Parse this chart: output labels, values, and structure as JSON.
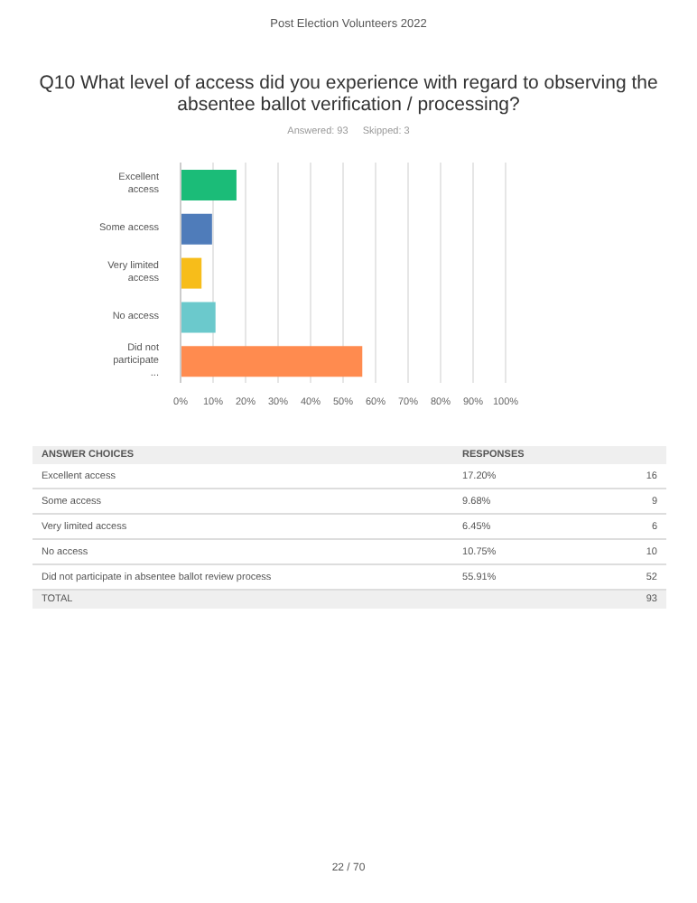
{
  "chart_data": {
    "type": "bar",
    "orientation": "horizontal",
    "subtitle": "Post Election Volunteers 2022",
    "title": "Q10 What level of access did you experience with regard to observing the absentee ballot verification / processing?",
    "categories": [
      "Excellent access",
      "Some access",
      "Very limited access",
      "No access",
      "Did not participate ..."
    ],
    "values": [
      17.2,
      9.68,
      6.45,
      10.75,
      55.91
    ],
    "colors": [
      "#1bbc78",
      "#4f7cba",
      "#f7bd1a",
      "#6bc9cc",
      "#ff8b4f"
    ],
    "xlim": [
      0,
      100
    ],
    "xticks": [
      {
        "value": 0,
        "label": "0%"
      },
      {
        "value": 10,
        "label": "10%"
      },
      {
        "value": 20,
        "label": "20%"
      },
      {
        "value": 30,
        "label": "30%"
      },
      {
        "value": 40,
        "label": "40%"
      },
      {
        "value": 50,
        "label": "50%"
      },
      {
        "value": 60,
        "label": "60%"
      },
      {
        "value": 70,
        "label": "70%"
      },
      {
        "value": 80,
        "label": "80%"
      },
      {
        "value": 90,
        "label": "90%"
      },
      {
        "value": 100,
        "label": "100%"
      }
    ],
    "grid": "x",
    "legend": false,
    "annotations": [
      "Answered: 93",
      "Skipped: 3",
      "ANSWER CHOICES",
      "RESPONSES",
      "Excellent access",
      "Some access",
      "Very limited access",
      "No access",
      "Did not participate in absentee ballot review process",
      "17.20%",
      "9.68%",
      "6.45%",
      "10.75%",
      "55.91%",
      "16",
      "9",
      "6",
      "10",
      "52",
      "TOTAL",
      "93",
      "22 / 70"
    ]
  }
}
